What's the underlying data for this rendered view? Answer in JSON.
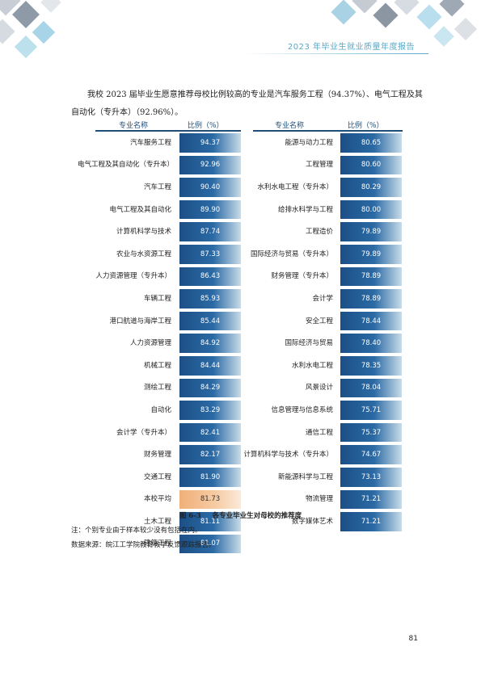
{
  "header": {
    "title": "2023 年毕业生就业质量年度报告"
  },
  "intro": "我校 2023 届毕业生愿意推荐母校比例较高的专业是汽车服务工程（94.37%）、电气工程及其自动化（专升本）（92.96%）。",
  "table": {
    "col_name_header": "专业名称",
    "col_value_header": "比例（%）",
    "left": [
      {
        "name": "汽车服务工程",
        "value": 94.37
      },
      {
        "name": "电气工程及其自动化（专升本）",
        "value": 92.96
      },
      {
        "name": "汽车工程",
        "value": 90.4
      },
      {
        "name": "电气工程及其自动化",
        "value": 89.9
      },
      {
        "name": "计算机科学与技术",
        "value": 87.74
      },
      {
        "name": "农业与水资源工程",
        "value": 87.33
      },
      {
        "name": "人力资源管理（专升本）",
        "value": 86.43
      },
      {
        "name": "车辆工程",
        "value": 85.93
      },
      {
        "name": "港口航道与海岸工程",
        "value": 85.44
      },
      {
        "name": "人力资源管理",
        "value": 84.92
      },
      {
        "name": "机械工程",
        "value": 84.44
      },
      {
        "name": "测绘工程",
        "value": 84.29
      },
      {
        "name": "自动化",
        "value": 83.29
      },
      {
        "name": "会计学（专升本）",
        "value": 82.41
      },
      {
        "name": "财务管理",
        "value": 82.17
      },
      {
        "name": "交通工程",
        "value": 81.9
      },
      {
        "name": "本校平均",
        "value": 81.73,
        "highlight": true
      },
      {
        "name": "土木工程",
        "value": 81.11
      },
      {
        "name": "建筑工程",
        "value": 81.07
      }
    ],
    "right": [
      {
        "name": "能源与动力工程",
        "value": 80.65
      },
      {
        "name": "工程管理",
        "value": 80.6
      },
      {
        "name": "水利水电工程（专升本）",
        "value": 80.29
      },
      {
        "name": "给排水科学与工程",
        "value": 80.0
      },
      {
        "name": "工程造价",
        "value": 79.89
      },
      {
        "name": "国际经济与贸易（专升本）",
        "value": 79.89
      },
      {
        "name": "财务管理（专升本）",
        "value": 78.89
      },
      {
        "name": "会计学",
        "value": 78.89
      },
      {
        "name": "安全工程",
        "value": 78.44
      },
      {
        "name": "国际经济与贸易",
        "value": 78.4
      },
      {
        "name": "水利水电工程",
        "value": 78.35
      },
      {
        "name": "风景设计",
        "value": 78.04
      },
      {
        "name": "信息管理与信息系统",
        "value": 75.71
      },
      {
        "name": "通信工程",
        "value": 75.37
      },
      {
        "name": "计算机科学与技术（专升本）",
        "value": 74.67
      },
      {
        "name": "新能源科学与工程",
        "value": 73.13
      },
      {
        "name": "物流管理",
        "value": 71.21
      },
      {
        "name": "数字媒体艺术",
        "value": 71.21
      }
    ]
  },
  "caption": {
    "figure_no": "图 6-3",
    "title": "各专业毕业生对母校的推荐度"
  },
  "notes": [
    "注：个别专业由于样本较少没有包括在内。",
    "数据来源：皖江工学院教育教学反馈跟踪报告。"
  ],
  "page_number": "81",
  "colors": {
    "bar_dark": "#1c4f86",
    "bar_light": "#c8dce9",
    "highlight": "#f0b07a",
    "header_accent": "#5aa9c8",
    "table_header": "#1f4e79"
  }
}
